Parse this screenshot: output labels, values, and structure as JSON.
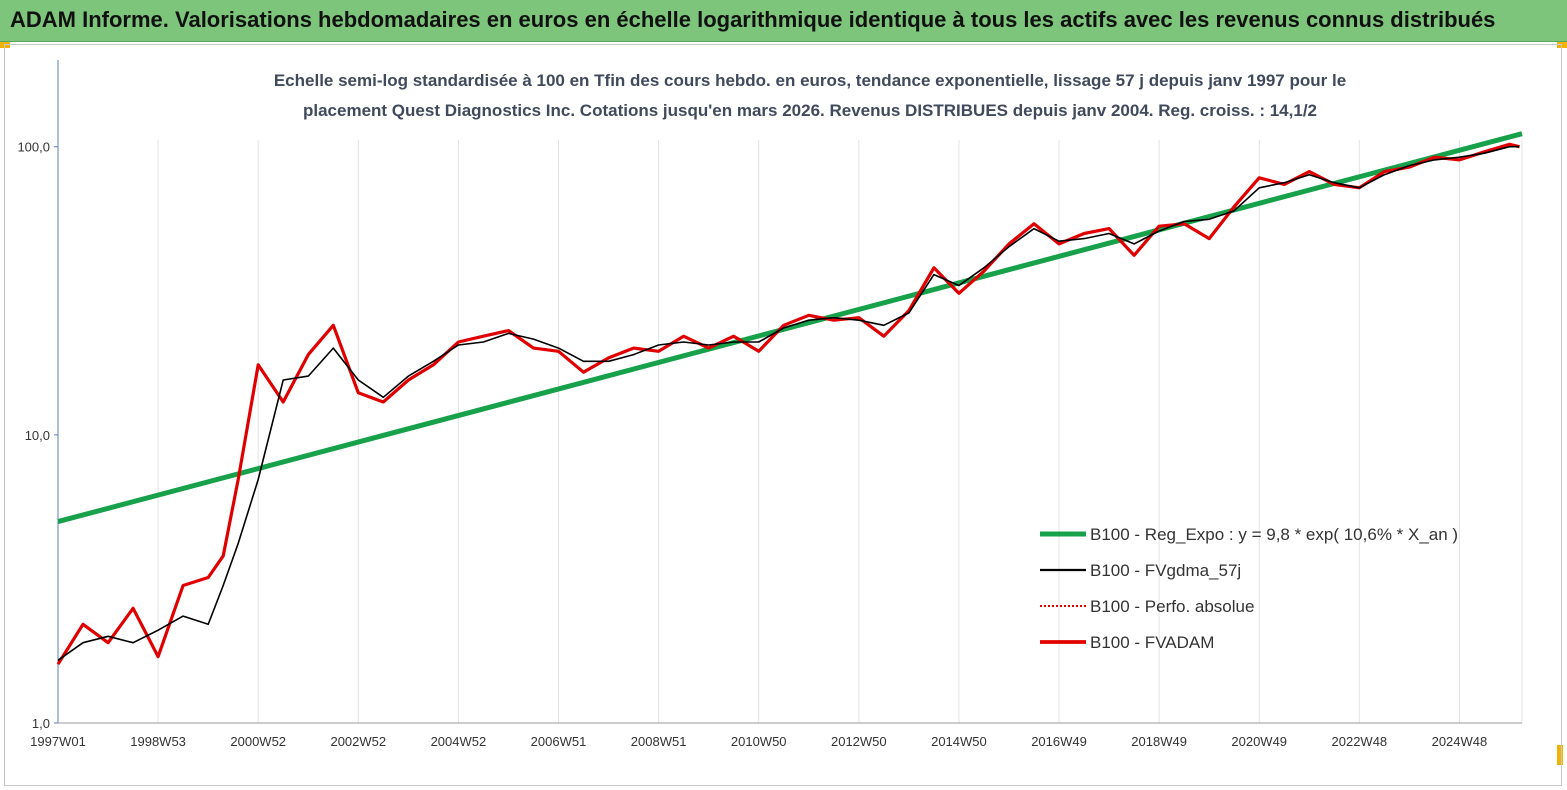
{
  "banner": {
    "title": "ADAM Informe. Valorisations hebdomadaires en euros en échelle logarithmique identique à tous les actifs avec les revenus connus distribués"
  },
  "colors": {
    "banner_bg": "#7cc57a",
    "corner_accent": "#f2b300",
    "regression": "#17a14a",
    "smoothed": "#000000",
    "performance": "#e00000",
    "fvadam": "#e00000"
  },
  "chart_data": {
    "type": "line",
    "title_line1": "Echelle semi-log standardisée à 100 en Tfin des cours hebdo. en euros, tendance exponentielle, lissage 57 j depuis janv 1997 pour le",
    "title_line2": "placement Quest Diagnostics Inc. Cotations jusqu'en mars 2026. Revenus DISTRIBUES depuis janv 2004. Reg. croiss. : 14,1/2",
    "y_scale": "log",
    "ylim": [
      1,
      200
    ],
    "y_ticks": [
      {
        "value": 1,
        "label": "1,0"
      },
      {
        "value": 10,
        "label": "10,0"
      },
      {
        "value": 100,
        "label": "100,0"
      }
    ],
    "xlim": [
      1997.0,
      2026.25
    ],
    "x_ticks": [
      {
        "value": 1997.0,
        "label": "1997W01"
      },
      {
        "value": 1999.0,
        "label": "1998W53"
      },
      {
        "value": 2001.0,
        "label": "2000W52"
      },
      {
        "value": 2003.0,
        "label": "2002W52"
      },
      {
        "value": 2005.0,
        "label": "2004W52"
      },
      {
        "value": 2007.0,
        "label": "2006W51"
      },
      {
        "value": 2009.0,
        "label": "2008W51"
      },
      {
        "value": 2011.0,
        "label": "2010W50"
      },
      {
        "value": 2013.0,
        "label": "2012W50"
      },
      {
        "value": 2015.0,
        "label": "2014W50"
      },
      {
        "value": 2017.0,
        "label": "2016W49"
      },
      {
        "value": 2019.0,
        "label": "2018W49"
      },
      {
        "value": 2021.0,
        "label": "2020W49"
      },
      {
        "value": 2023.0,
        "label": "2022W48"
      },
      {
        "value": 2025.0,
        "label": "2024W48"
      }
    ],
    "grid": "vertical",
    "legend_position": "bottom-right",
    "series": [
      {
        "name": "B100 - Reg_Expo : y = 9,8 * exp( 10,6% *  X_an )",
        "color": "#17a14a",
        "style": "thick",
        "x": [
          1997.0,
          2026.25
        ],
        "values": [
          5.0,
          111.0
        ]
      },
      {
        "name": "B100 - FVgdma_57j",
        "color": "#000000",
        "style": "thin",
        "x": [
          1997.0,
          1997.5,
          1998.0,
          1998.5,
          1999.0,
          1999.5,
          2000.0,
          2000.3,
          2000.6,
          2001.0,
          2001.5,
          2002.0,
          2002.5,
          2003.0,
          2003.5,
          2004.0,
          2004.5,
          2005.0,
          2005.5,
          2006.0,
          2006.5,
          2007.0,
          2007.5,
          2008.0,
          2008.5,
          2009.0,
          2009.5,
          2010.0,
          2010.5,
          2011.0,
          2011.5,
          2012.0,
          2012.5,
          2013.0,
          2013.5,
          2014.0,
          2014.5,
          2015.0,
          2015.5,
          2016.0,
          2016.5,
          2017.0,
          2017.5,
          2018.0,
          2018.5,
          2019.0,
          2019.5,
          2020.0,
          2020.5,
          2021.0,
          2021.5,
          2022.0,
          2022.5,
          2023.0,
          2023.5,
          2024.0,
          2024.5,
          2025.0,
          2025.5,
          2026.0,
          2026.2
        ],
        "values": [
          1.65,
          1.9,
          2.0,
          1.9,
          2.1,
          2.35,
          2.2,
          3.0,
          4.2,
          7.0,
          15.5,
          16.0,
          20.0,
          15.5,
          13.5,
          16.0,
          18.0,
          20.5,
          21.0,
          22.5,
          21.5,
          20.0,
          18.0,
          18.0,
          19.0,
          20.5,
          21.0,
          20.5,
          21.0,
          21.0,
          23.5,
          25.0,
          25.5,
          25.0,
          24.0,
          26.5,
          36.0,
          33.0,
          38.0,
          45.0,
          52.0,
          47.0,
          48.0,
          50.0,
          46.0,
          51.0,
          55.0,
          56.0,
          60.0,
          72.0,
          75.0,
          80.0,
          75.0,
          72.0,
          80.0,
          86.0,
          90.0,
          92.0,
          95.0,
          100.0,
          100.0
        ]
      },
      {
        "name": "B100 - Perfo. absolue",
        "color": "#e00000",
        "style": "dotted",
        "x": [
          1997.0,
          1997.5,
          1998.0,
          1998.5,
          1999.0,
          1999.5,
          2000.0,
          2000.3,
          2000.6,
          2001.0,
          2001.5,
          2002.0,
          2002.5,
          2003.0,
          2003.5,
          2004.0,
          2004.5,
          2005.0,
          2005.5,
          2006.0,
          2006.5,
          2007.0,
          2007.5,
          2008.0,
          2008.5,
          2009.0,
          2009.5,
          2010.0,
          2010.5,
          2011.0,
          2011.5,
          2012.0,
          2012.5,
          2013.0,
          2013.5,
          2014.0,
          2014.5,
          2015.0,
          2015.5,
          2016.0,
          2016.5,
          2017.0,
          2017.5,
          2018.0,
          2018.5,
          2019.0,
          2019.5,
          2020.0,
          2020.5,
          2021.0,
          2021.5,
          2022.0,
          2022.5,
          2023.0,
          2023.5,
          2024.0,
          2024.5,
          2025.0,
          2025.5,
          2026.0,
          2026.2
        ],
        "values": [
          1.6,
          2.2,
          1.9,
          2.5,
          1.7,
          3.0,
          3.2,
          3.8,
          7.0,
          17.5,
          13.0,
          19.0,
          24.0,
          14.0,
          13.0,
          15.5,
          17.5,
          21.0,
          22.0,
          23.0,
          20.0,
          19.5,
          16.5,
          18.5,
          20.0,
          19.5,
          22.0,
          20.0,
          22.0,
          19.5,
          24.0,
          26.0,
          25.0,
          25.5,
          22.0,
          27.0,
          38.0,
          31.0,
          37.0,
          46.0,
          54.0,
          46.0,
          50.0,
          52.0,
          42.0,
          53.0,
          54.0,
          48.0,
          62.0,
          78.0,
          74.0,
          82.0,
          74.0,
          72.0,
          82.0,
          85.0,
          92.0,
          90.0,
          96.0,
          102.0,
          100.0
        ]
      },
      {
        "name": "B100 - FVADAM",
        "color": "#e00000",
        "style": "thick",
        "x": [
          1997.0,
          1997.5,
          1998.0,
          1998.5,
          1999.0,
          1999.5,
          2000.0,
          2000.3,
          2000.6,
          2001.0,
          2001.5,
          2002.0,
          2002.5,
          2003.0,
          2003.5,
          2004.0,
          2004.5,
          2005.0,
          2005.5,
          2006.0,
          2006.5,
          2007.0,
          2007.5,
          2008.0,
          2008.5,
          2009.0,
          2009.5,
          2010.0,
          2010.5,
          2011.0,
          2011.5,
          2012.0,
          2012.5,
          2013.0,
          2013.5,
          2014.0,
          2014.5,
          2015.0,
          2015.5,
          2016.0,
          2016.5,
          2017.0,
          2017.5,
          2018.0,
          2018.5,
          2019.0,
          2019.5,
          2020.0,
          2020.5,
          2021.0,
          2021.5,
          2022.0,
          2022.5,
          2023.0,
          2023.5,
          2024.0,
          2024.5,
          2025.0,
          2025.5,
          2026.0,
          2026.2
        ],
        "values": [
          1.6,
          2.2,
          1.9,
          2.5,
          1.7,
          3.0,
          3.2,
          3.8,
          7.0,
          17.5,
          13.0,
          19.0,
          24.0,
          14.0,
          13.0,
          15.5,
          17.5,
          21.0,
          22.0,
          23.0,
          20.0,
          19.5,
          16.5,
          18.5,
          20.0,
          19.5,
          22.0,
          20.0,
          22.0,
          19.5,
          24.0,
          26.0,
          25.0,
          25.5,
          22.0,
          27.0,
          38.0,
          31.0,
          37.0,
          46.0,
          54.0,
          46.0,
          50.0,
          52.0,
          42.0,
          53.0,
          54.0,
          48.0,
          62.0,
          78.0,
          74.0,
          82.0,
          74.0,
          72.0,
          82.0,
          85.0,
          92.0,
          90.0,
          96.0,
          102.0,
          100.0
        ]
      }
    ]
  }
}
